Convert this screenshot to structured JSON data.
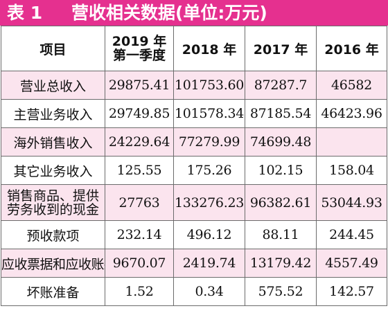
{
  "title": {
    "number": "表 1",
    "text": "营收相关数据(单位:万元)"
  },
  "colors": {
    "title_bg": "#e5308f",
    "title_text": "#ffffff",
    "row_alt_bg": "#fbe4ee",
    "border": "#6b6b6b"
  },
  "table": {
    "headers": {
      "item": "项目",
      "col1_line1": "2019 年",
      "col1_line2": "第一季度",
      "col2": "2018 年",
      "col3": "2017 年",
      "col4": "2016 年"
    },
    "rows": [
      {
        "label": "营业总收入",
        "v2019q1": "29875.41",
        "v2018": "101753.60",
        "v2017": "87287.7",
        "v2016": "46582"
      },
      {
        "label": "主营业务收入",
        "v2019q1": "29749.85",
        "v2018": "101578.34",
        "v2017": "87185.54",
        "v2016": "46423.96"
      },
      {
        "label": "海外销售收入",
        "v2019q1": "24229.64",
        "v2018": "77279.99",
        "v2017": "74699.48",
        "v2016": ""
      },
      {
        "label": "其它业务收入",
        "v2019q1": "125.55",
        "v2018": "175.26",
        "v2017": "102.15",
        "v2016": "158.04"
      },
      {
        "label_line1": "销售商品、提供",
        "label_line2": "劳务收到的现金",
        "v2019q1": "27763",
        "v2018": "133276.23",
        "v2017": "96382.61",
        "v2016": "53044.93"
      },
      {
        "label": "预收款项",
        "v2019q1": "232.14",
        "v2018": "496.12",
        "v2017": "88.11",
        "v2016": "244.45"
      },
      {
        "label": "应收票据和应收账款",
        "v2019q1": "9670.07",
        "v2018": "2419.74",
        "v2017": "13179.42",
        "v2016": "4557.49"
      },
      {
        "label": "坏账准备",
        "v2019q1": "1.52",
        "v2018": "0.34",
        "v2017": "575.52",
        "v2016": "142.57"
      }
    ]
  }
}
